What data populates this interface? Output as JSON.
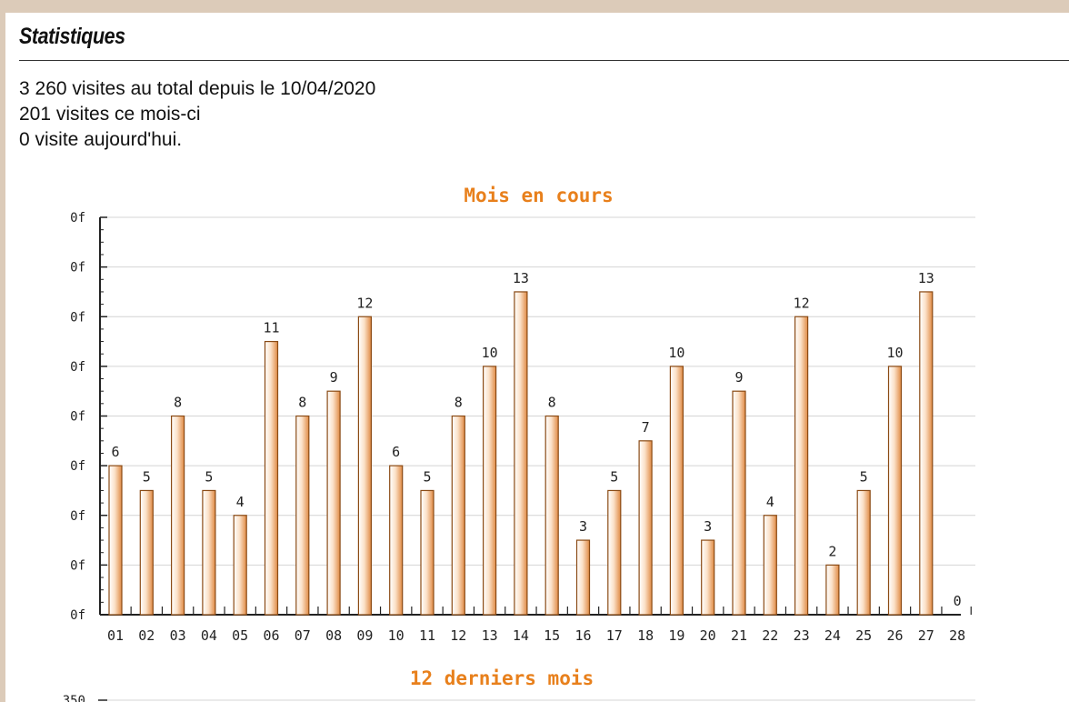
{
  "section": {
    "title": "Statistiques"
  },
  "stats": {
    "total_line": "3 260 visites au total depuis le 10/04/2020",
    "month_line": "201 visites ce mois-ci",
    "today_line": "0 visite aujourd'hui."
  },
  "chart_data": [
    {
      "type": "bar",
      "title": "Mois en cours",
      "categories": [
        "01",
        "02",
        "03",
        "04",
        "05",
        "06",
        "07",
        "08",
        "09",
        "10",
        "11",
        "12",
        "13",
        "14",
        "15",
        "16",
        "17",
        "18",
        "19",
        "20",
        "21",
        "22",
        "23",
        "24",
        "25",
        "26",
        "27",
        "28"
      ],
      "values": [
        6,
        5,
        8,
        5,
        4,
        11,
        8,
        9,
        12,
        6,
        5,
        8,
        10,
        13,
        8,
        3,
        5,
        7,
        10,
        3,
        9,
        4,
        12,
        2,
        5,
        10,
        13,
        0
      ],
      "y_tick_labels": [
        "0f",
        "0f",
        "0f",
        "0f",
        "0f",
        "0f",
        "0f",
        "0f",
        "0f"
      ],
      "ylim": [
        0,
        16
      ],
      "grid": true,
      "colors": {
        "title": "#e8801c",
        "bar_fill": "#f3b27a",
        "bar_edge": "#8a4a14"
      }
    },
    {
      "type": "bar",
      "title": "12 derniers mois",
      "y_tick_labels": [
        "350"
      ],
      "colors": {
        "title": "#e8801c"
      }
    }
  ]
}
